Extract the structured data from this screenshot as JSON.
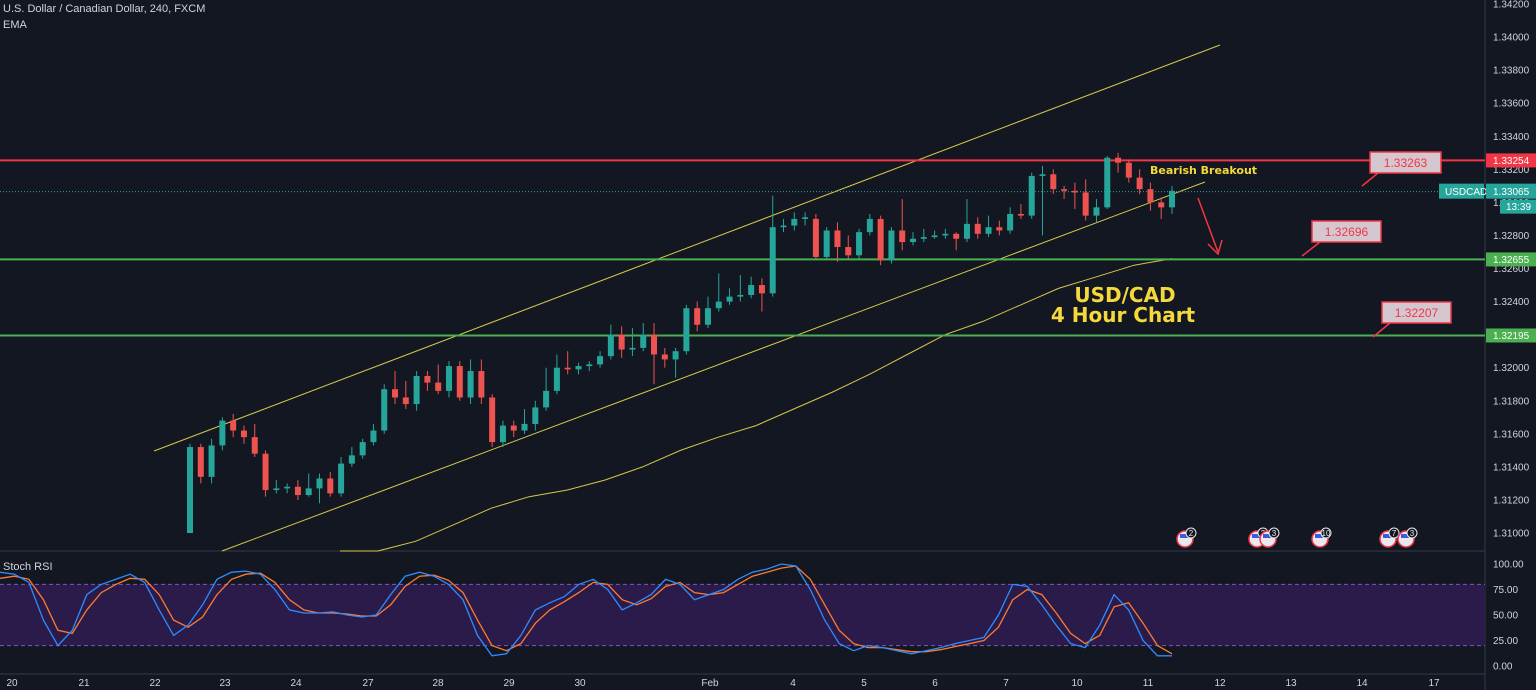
{
  "header": {
    "symbol_line": "U.S. Dollar / Canadian Dollar, 240, FXCM",
    "indicator": "EMA"
  },
  "chart_data": {
    "type": "candlestick",
    "symbol": "USDCAD",
    "timeframe": "240",
    "y_axis": {
      "ticks": [
        "1.34200",
        "1.34000",
        "1.33800",
        "1.33600",
        "1.33400",
        "1.33200",
        "1.33000",
        "1.32800",
        "1.32600",
        "1.32400",
        "1.32200",
        "1.32000",
        "1.31800",
        "1.31600",
        "1.31400",
        "1.31200",
        "1.31000"
      ],
      "range": [
        1.3097,
        1.342
      ]
    },
    "x_axis": {
      "labels": [
        "20",
        "21",
        "22",
        "23",
        "24",
        "27",
        "28",
        "29",
        "30",
        "Feb",
        "4",
        "5",
        "6",
        "7",
        "10",
        "11",
        "12",
        "13",
        "14",
        "17"
      ]
    },
    "candles": [
      [
        1.31,
        1.3152,
        1.31,
        1.3154
      ],
      [
        1.3152,
        1.3134,
        1.313,
        1.3154
      ],
      [
        1.3134,
        1.3153,
        1.313,
        1.3157
      ],
      [
        1.3153,
        1.3168,
        1.315,
        1.317
      ],
      [
        1.3168,
        1.3162,
        1.3158,
        1.3172
      ],
      [
        1.3162,
        1.3158,
        1.3154,
        1.3165
      ],
      [
        1.3158,
        1.3148,
        1.3146,
        1.3166
      ],
      [
        1.3148,
        1.3126,
        1.3122,
        1.315
      ],
      [
        1.3126,
        1.3127,
        1.3124,
        1.3132
      ],
      [
        1.3127,
        1.3128,
        1.3124,
        1.313
      ],
      [
        1.3128,
        1.3123,
        1.312,
        1.3132
      ],
      [
        1.3123,
        1.3127,
        1.3122,
        1.3136
      ],
      [
        1.3127,
        1.3133,
        1.3118,
        1.3136
      ],
      [
        1.3133,
        1.3124,
        1.3122,
        1.3137
      ],
      [
        1.3124,
        1.3142,
        1.3122,
        1.3146
      ],
      [
        1.3142,
        1.3147,
        1.314,
        1.3152
      ],
      [
        1.3147,
        1.3155,
        1.3145,
        1.3157
      ],
      [
        1.3155,
        1.3162,
        1.3153,
        1.3166
      ],
      [
        1.3162,
        1.3187,
        1.316,
        1.319
      ],
      [
        1.3187,
        1.3182,
        1.3178,
        1.3198
      ],
      [
        1.3182,
        1.3178,
        1.3175,
        1.3192
      ],
      [
        1.3178,
        1.3195,
        1.3174,
        1.3198
      ],
      [
        1.3195,
        1.3191,
        1.3186,
        1.3198
      ],
      [
        1.3191,
        1.3186,
        1.3184,
        1.3202
      ],
      [
        1.3186,
        1.3201,
        1.3182,
        1.3204
      ],
      [
        1.3201,
        1.3182,
        1.318,
        1.3204
      ],
      [
        1.3182,
        1.3198,
        1.3178,
        1.3205
      ],
      [
        1.3198,
        1.3182,
        1.3178,
        1.3205
      ],
      [
        1.3182,
        1.3155,
        1.3152,
        1.3184
      ],
      [
        1.3155,
        1.3165,
        1.3152,
        1.3168
      ],
      [
        1.3165,
        1.3162,
        1.3158,
        1.3168
      ],
      [
        1.3162,
        1.3166,
        1.316,
        1.3175
      ],
      [
        1.3166,
        1.3176,
        1.3162,
        1.318
      ],
      [
        1.3176,
        1.3186,
        1.3174,
        1.32
      ],
      [
        1.3186,
        1.32,
        1.3184,
        1.3208
      ],
      [
        1.32,
        1.3199,
        1.3196,
        1.321
      ],
      [
        1.3199,
        1.3201,
        1.3196,
        1.3203
      ],
      [
        1.3201,
        1.3202,
        1.3198,
        1.3204
      ],
      [
        1.3202,
        1.3207,
        1.32,
        1.321
      ],
      [
        1.3207,
        1.322,
        1.3205,
        1.3226
      ],
      [
        1.322,
        1.3211,
        1.3206,
        1.3225
      ],
      [
        1.3211,
        1.3212,
        1.3207,
        1.3224
      ],
      [
        1.3212,
        1.322,
        1.321,
        1.3227
      ],
      [
        1.322,
        1.3208,
        1.319,
        1.3227
      ],
      [
        1.3208,
        1.3205,
        1.32,
        1.3212
      ],
      [
        1.3205,
        1.321,
        1.3194,
        1.3212
      ],
      [
        1.321,
        1.3236,
        1.3208,
        1.3238
      ],
      [
        1.3236,
        1.3226,
        1.3222,
        1.324
      ],
      [
        1.3226,
        1.3236,
        1.3224,
        1.3243
      ],
      [
        1.3236,
        1.324,
        1.3234,
        1.3257
      ],
      [
        1.324,
        1.3243,
        1.3238,
        1.3248
      ],
      [
        1.3243,
        1.3244,
        1.324,
        1.3256
      ],
      [
        1.3244,
        1.325,
        1.3242,
        1.3255
      ],
      [
        1.325,
        1.3245,
        1.3234,
        1.3254
      ],
      [
        1.3245,
        1.3285,
        1.3243,
        1.3304
      ],
      [
        1.3285,
        1.3286,
        1.3282,
        1.329
      ],
      [
        1.3286,
        1.329,
        1.3283,
        1.3294
      ],
      [
        1.329,
        1.3291,
        1.3286,
        1.3294
      ],
      [
        1.329,
        1.3267,
        1.3266,
        1.3293
      ],
      [
        1.3267,
        1.3283,
        1.3265,
        1.3285
      ],
      [
        1.3283,
        1.3273,
        1.3264,
        1.3288
      ],
      [
        1.3273,
        1.3268,
        1.3266,
        1.328
      ],
      [
        1.3268,
        1.3282,
        1.3266,
        1.3284
      ],
      [
        1.3282,
        1.329,
        1.328,
        1.3293
      ],
      [
        1.329,
        1.3265,
        1.3262,
        1.3292
      ],
      [
        1.3265,
        1.3283,
        1.3263,
        1.3285
      ],
      [
        1.3283,
        1.3276,
        1.3271,
        1.3302
      ],
      [
        1.3276,
        1.3278,
        1.3274,
        1.3282
      ],
      [
        1.3278,
        1.3279,
        1.3276,
        1.3284
      ],
      [
        1.3279,
        1.328,
        1.3278,
        1.3283
      ],
      [
        1.328,
        1.3281,
        1.3278,
        1.3284
      ],
      [
        1.3281,
        1.3278,
        1.3271,
        1.3282
      ],
      [
        1.3278,
        1.3287,
        1.3276,
        1.3302
      ],
      [
        1.3287,
        1.3281,
        1.3278,
        1.3291
      ],
      [
        1.3281,
        1.3285,
        1.3279,
        1.3292
      ],
      [
        1.3285,
        1.3283,
        1.328,
        1.3289
      ],
      [
        1.3283,
        1.3293,
        1.3281,
        1.3297
      ],
      [
        1.3293,
        1.3292,
        1.329,
        1.3299
      ],
      [
        1.3292,
        1.3316,
        1.329,
        1.3318
      ],
      [
        1.3316,
        1.3317,
        1.328,
        1.3322
      ],
      [
        1.3317,
        1.3308,
        1.3305,
        1.332
      ],
      [
        1.3308,
        1.3307,
        1.3302,
        1.331
      ],
      [
        1.3307,
        1.3306,
        1.3296,
        1.3312
      ],
      [
        1.3306,
        1.3292,
        1.3289,
        1.3314
      ],
      [
        1.3292,
        1.3297,
        1.3288,
        1.3302
      ],
      [
        1.3297,
        1.3327,
        1.3296,
        1.3328
      ],
      [
        1.3327,
        1.3324,
        1.3318,
        1.333
      ],
      [
        1.3324,
        1.3315,
        1.3312,
        1.3326
      ],
      [
        1.3315,
        1.3308,
        1.3305,
        1.332
      ],
      [
        1.3308,
        1.33,
        1.3295,
        1.3312
      ],
      [
        1.33,
        1.3297,
        1.329,
        1.3303
      ],
      [
        1.3297,
        1.3307,
        1.3293,
        1.331
      ]
    ],
    "ema": [
      1.306,
      1.308,
      1.3095,
      1.3105,
      1.3115,
      1.3122,
      1.3126,
      1.3132,
      1.314,
      1.315,
      1.3158,
      1.3165,
      1.3175,
      1.3185,
      1.3196,
      1.3208,
      1.322,
      1.3228,
      1.3238,
      1.3248,
      1.3255,
      1.3262,
      1.3266
    ],
    "horizontal_levels": [
      {
        "price": 1.33254,
        "color": "#f23645",
        "label": "1.33254"
      },
      {
        "price": 1.32655,
        "color": "#4caf50",
        "label": "1.32655"
      },
      {
        "price": 1.32195,
        "color": "#4caf50",
        "label": "1.32195"
      }
    ],
    "current_price": {
      "symbol": "USDCAD",
      "value": "1.33065",
      "countdown": "13:39"
    },
    "callouts": [
      "1.33263",
      "1.32696",
      "1.32207"
    ],
    "annotations": {
      "breakout": "Bearish Breakout",
      "title_line1": "USD/CAD",
      "title_line2": "4 Hour Chart"
    },
    "events": [
      "2",
      "2",
      "3",
      "10",
      "7",
      "3"
    ]
  },
  "stoch_rsi": {
    "title": "Stoch RSI",
    "ticks": [
      "100.00",
      "75.00",
      "50.00",
      "25.00",
      "0.00"
    ],
    "range": [
      0,
      100
    ],
    "band": [
      20,
      80
    ],
    "k": [
      92,
      90,
      82,
      45,
      20,
      35,
      70,
      80,
      85,
      90,
      82,
      55,
      30,
      40,
      60,
      85,
      92,
      93,
      90,
      75,
      55,
      52,
      52,
      53,
      50,
      48,
      50,
      70,
      88,
      92,
      88,
      80,
      65,
      30,
      10,
      12,
      30,
      55,
      62,
      68,
      80,
      85,
      75,
      55,
      62,
      70,
      85,
      80,
      65,
      70,
      75,
      85,
      92,
      95,
      100,
      98,
      75,
      45,
      22,
      15,
      20,
      18,
      15,
      12,
      15,
      18,
      22,
      25,
      28,
      50,
      80,
      78,
      60,
      40,
      22,
      18,
      40,
      70,
      55,
      25,
      10,
      10
    ],
    "d": [
      86,
      88,
      85,
      65,
      35,
      32,
      55,
      72,
      80,
      86,
      85,
      70,
      45,
      38,
      48,
      70,
      85,
      90,
      91,
      82,
      65,
      55,
      52,
      52,
      51,
      49,
      49,
      60,
      78,
      88,
      89,
      84,
      72,
      45,
      20,
      15,
      22,
      42,
      55,
      63,
      72,
      82,
      80,
      65,
      60,
      66,
      78,
      82,
      72,
      70,
      72,
      80,
      88,
      92,
      96,
      98,
      85,
      60,
      35,
      22,
      18,
      18,
      16,
      14,
      14,
      16,
      19,
      22,
      25,
      38,
      65,
      75,
      70,
      52,
      32,
      22,
      30,
      58,
      62,
      42,
      20,
      12
    ]
  }
}
